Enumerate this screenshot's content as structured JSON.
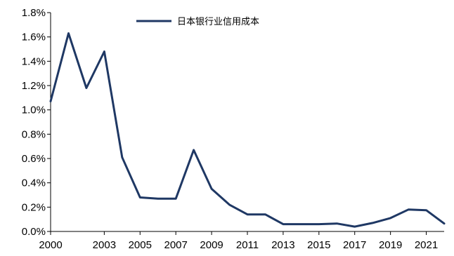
{
  "chart_data": {
    "type": "line",
    "title": "",
    "xlabel": "",
    "ylabel": "",
    "ylim": [
      0,
      1.8
    ],
    "xlim": [
      2000,
      2022
    ],
    "y_tick_values": [
      0,
      0.2,
      0.4,
      0.6,
      0.8,
      1.0,
      1.2,
      1.4,
      1.6,
      1.8
    ],
    "y_tick_labels": [
      "0.0%",
      "0.2%",
      "0.4%",
      "0.6%",
      "0.8%",
      "1.0%",
      "1.2%",
      "1.4%",
      "1.6%",
      "1.8%"
    ],
    "x_tick_values": [
      2000,
      2003,
      2005,
      2007,
      2009,
      2011,
      2013,
      2015,
      2017,
      2019,
      2021
    ],
    "x_tick_labels": [
      "2000",
      "2003",
      "2005",
      "2007",
      "2009",
      "2011",
      "2013",
      "2015",
      "2017",
      "2019",
      "2021"
    ],
    "grid": false,
    "legend_position": "top-center",
    "series": [
      {
        "name": "日本银行业信用成本",
        "color": "#1f3864",
        "x": [
          2000,
          2001,
          2002,
          2003,
          2004,
          2005,
          2006,
          2007,
          2008,
          2009,
          2010,
          2011,
          2012,
          2013,
          2014,
          2015,
          2016,
          2017,
          2018,
          2019,
          2020,
          2021,
          2022
        ],
        "y": [
          1.07,
          1.63,
          1.18,
          1.48,
          0.61,
          0.28,
          0.27,
          0.27,
          0.67,
          0.35,
          0.22,
          0.14,
          0.14,
          0.06,
          0.06,
          0.06,
          0.065,
          0.04,
          0.07,
          0.11,
          0.18,
          0.175,
          0.065
        ]
      }
    ]
  }
}
